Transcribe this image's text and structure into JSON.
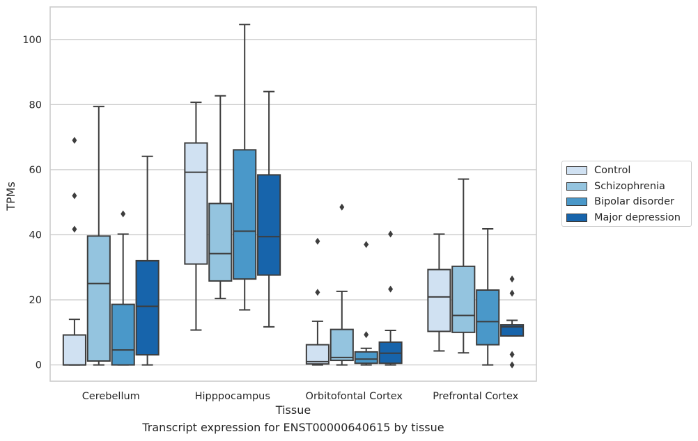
{
  "caption": "Transcript expression for ENST00000640615 by tissue",
  "chart_data": {
    "type": "box",
    "xlabel": "Tissue",
    "ylabel": "TPMs",
    "ylim": [
      -5,
      110
    ],
    "yticks": [
      0,
      20,
      40,
      60,
      80,
      100
    ],
    "grid": "horizontal",
    "legend_position": "right",
    "categories": [
      "Cerebellum",
      "Hipppocampus",
      "Orbitofontal Cortex",
      "Prefrontal Cortex"
    ],
    "series": [
      {
        "name": "Control",
        "color": "#d0e1f2",
        "boxes": [
          {
            "whislo": 0,
            "q1": 0,
            "med": 0,
            "q3": 9.2,
            "whishi": 14,
            "fliers": [
              41.7,
              52,
              69
            ]
          },
          {
            "whislo": 10.7,
            "q1": 31,
            "med": 59.2,
            "q3": 68.2,
            "whishi": 80.7,
            "fliers": []
          },
          {
            "whislo": 0,
            "q1": 0.3,
            "med": 1,
            "q3": 6.2,
            "whishi": 13.4,
            "fliers": [
              22.3,
              38
            ]
          },
          {
            "whislo": 4.3,
            "q1": 10.3,
            "med": 20.9,
            "q3": 29.3,
            "whishi": 40.2,
            "fliers": []
          }
        ]
      },
      {
        "name": "Schizophrenia",
        "color": "#94c4df",
        "boxes": [
          {
            "whislo": 0,
            "q1": 1.2,
            "med": 25,
            "q3": 39.6,
            "whishi": 79.4,
            "fliers": []
          },
          {
            "whislo": 20.4,
            "q1": 25.8,
            "med": 34.2,
            "q3": 49.6,
            "whishi": 82.7,
            "fliers": []
          },
          {
            "whislo": 0,
            "q1": 1.4,
            "med": 2.3,
            "q3": 10.9,
            "whishi": 22.6,
            "fliers": [
              48.5
            ]
          },
          {
            "whislo": 3.7,
            "q1": 10,
            "med": 15.2,
            "q3": 30.3,
            "whishi": 57.1,
            "fliers": []
          }
        ]
      },
      {
        "name": "Bipolar disorder",
        "color": "#4a98c9",
        "boxes": [
          {
            "whislo": 0,
            "q1": 0,
            "med": 4.6,
            "q3": 18.6,
            "whishi": 40.2,
            "fliers": [
              46.4
            ]
          },
          {
            "whislo": 16.9,
            "q1": 26.4,
            "med": 41.1,
            "q3": 66.1,
            "whishi": 104.6,
            "fliers": []
          },
          {
            "whislo": 0,
            "q1": 0.5,
            "med": 1.8,
            "q3": 4,
            "whishi": 5.1,
            "fliers": [
              9.3,
              37
            ]
          },
          {
            "whislo": 0,
            "q1": 6.2,
            "med": 13.3,
            "q3": 23,
            "whishi": 41.8,
            "fliers": []
          }
        ]
      },
      {
        "name": "Major depression",
        "color": "#1764ab",
        "boxes": [
          {
            "whislo": 0,
            "q1": 3.1,
            "med": 18,
            "q3": 32,
            "whishi": 64.1,
            "fliers": []
          },
          {
            "whislo": 11.7,
            "q1": 27.6,
            "med": 39.4,
            "q3": 58.4,
            "whishi": 84,
            "fliers": []
          },
          {
            "whislo": 0,
            "q1": 0.5,
            "med": 3.6,
            "q3": 7,
            "whishi": 10.6,
            "fliers": [
              23.3,
              40.2
            ]
          },
          {
            "whislo": 8.9,
            "q1": 8.9,
            "med": 11.7,
            "q3": 12.3,
            "whishi": 13.7,
            "fliers": [
              0,
              3.2,
              22,
              26.4
            ]
          }
        ]
      }
    ]
  }
}
